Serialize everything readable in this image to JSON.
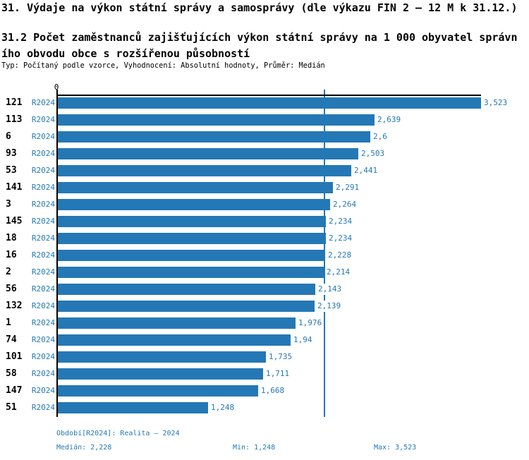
{
  "header": {
    "title": "31. Výdaje na výkon státní správy a samosprávy (dle výkazu FIN 2 – 12 M k 31.12.)",
    "subtitle_lines": [
      "31.2 Počet zaměstnanců zajišťujících výkon státní správy na 1 000 obyvatel správn",
      "ího obvodu obce s rozšířenou působností"
    ],
    "meta": "Typ: Počítaný podle vzorce, Vyhodnocení: Absolutní hodnoty, Průměr: Medián"
  },
  "chart_data": {
    "type": "bar",
    "orientation": "horizontal",
    "title": "31.2 Počet zaměstnanců zajišťujících výkon státní správy na 1 000 obyvatel správního obvodu obce s rozšířenou působností",
    "xlabel": "",
    "ylabel": "",
    "xlim": [
      0,
      3.523
    ],
    "zero_tick_label": "0",
    "period": "R2024",
    "median_value": 2.228,
    "grid": false,
    "legend_position": "none",
    "categories": [
      "121",
      "113",
      "6",
      "93",
      "53",
      "141",
      "3",
      "145",
      "18",
      "16",
      "2",
      "56",
      "132",
      "1",
      "74",
      "101",
      "58",
      "147",
      "51"
    ],
    "values": [
      3.523,
      2.639,
      2.6,
      2.503,
      2.441,
      2.291,
      2.264,
      2.234,
      2.234,
      2.228,
      2.214,
      2.143,
      2.139,
      1.976,
      1.94,
      1.735,
      1.711,
      1.668,
      1.248
    ],
    "rows": [
      {
        "id": "121",
        "period": "R2024",
        "value": 3.523,
        "value_label": "3,523"
      },
      {
        "id": "113",
        "period": "R2024",
        "value": 2.639,
        "value_label": "2,639"
      },
      {
        "id": "6",
        "period": "R2024",
        "value": 2.6,
        "value_label": "2,6"
      },
      {
        "id": "93",
        "period": "R2024",
        "value": 2.503,
        "value_label": "2,503"
      },
      {
        "id": "53",
        "period": "R2024",
        "value": 2.441,
        "value_label": "2,441"
      },
      {
        "id": "141",
        "period": "R2024",
        "value": 2.291,
        "value_label": "2,291"
      },
      {
        "id": "3",
        "period": "R2024",
        "value": 2.264,
        "value_label": "2,264"
      },
      {
        "id": "145",
        "period": "R2024",
        "value": 2.234,
        "value_label": "2,234"
      },
      {
        "id": "18",
        "period": "R2024",
        "value": 2.234,
        "value_label": "2,234"
      },
      {
        "id": "16",
        "period": "R2024",
        "value": 2.228,
        "value_label": "2,228"
      },
      {
        "id": "2",
        "period": "R2024",
        "value": 2.214,
        "value_label": "2,214"
      },
      {
        "id": "56",
        "period": "R2024",
        "value": 2.143,
        "value_label": "2,143"
      },
      {
        "id": "132",
        "period": "R2024",
        "value": 2.139,
        "value_label": "2,139"
      },
      {
        "id": "1",
        "period": "R2024",
        "value": 1.976,
        "value_label": "1,976"
      },
      {
        "id": "74",
        "period": "R2024",
        "value": 1.94,
        "value_label": "1,94"
      },
      {
        "id": "101",
        "period": "R2024",
        "value": 1.735,
        "value_label": "1,735"
      },
      {
        "id": "58",
        "period": "R2024",
        "value": 1.711,
        "value_label": "1,711"
      },
      {
        "id": "147",
        "period": "R2024",
        "value": 1.668,
        "value_label": "1,668"
      },
      {
        "id": "51",
        "period": "R2024",
        "value": 1.248,
        "value_label": "1,248"
      }
    ],
    "colors": {
      "bar": "#2478b5",
      "median_line": "#2478b5",
      "axis": "#000000",
      "label_text": "#2478b5",
      "category_text": "#000000"
    }
  },
  "footer": {
    "period_label": "Období[R2024]: Realita – 2024",
    "median_label": "Medián: 2,228",
    "min_label": "Min: 1,248",
    "max_label": "Max: 3,523"
  }
}
